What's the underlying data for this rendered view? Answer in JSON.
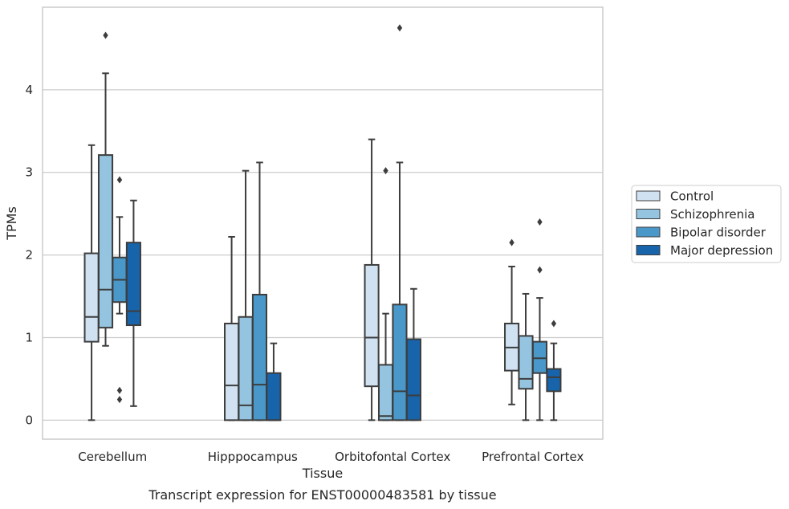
{
  "chart_data": {
    "type": "box",
    "title": "",
    "caption": "Transcript expression for ENST00000483581 by tissue",
    "xlabel": "Tissue",
    "ylabel": "TPMs",
    "ylim": [
      -0.23,
      5.0
    ],
    "yticks": [
      0,
      1,
      2,
      3,
      4
    ],
    "grid": "horizontal",
    "legend_position": "right",
    "categories": [
      "Cerebellum",
      "Hipppocampus",
      "Orbitofontal Cortex",
      "Prefrontal Cortex"
    ],
    "series": [
      {
        "name": "Control",
        "color": "#d0e1f2",
        "boxes": [
          {
            "whisker_low": 0.0,
            "q1": 0.95,
            "median": 1.25,
            "q3": 2.02,
            "whisker_high": 3.33,
            "outliers": []
          },
          {
            "whisker_low": 0.0,
            "q1": 0.0,
            "median": 0.42,
            "q3": 1.17,
            "whisker_high": 2.22,
            "outliers": []
          },
          {
            "whisker_low": 0.0,
            "q1": 0.41,
            "median": 1.0,
            "q3": 1.88,
            "whisker_high": 3.4,
            "outliers": []
          },
          {
            "whisker_low": 0.19,
            "q1": 0.6,
            "median": 0.88,
            "q3": 1.17,
            "whisker_high": 1.86,
            "outliers": [
              2.15
            ]
          }
        ]
      },
      {
        "name": "Schizophrenia",
        "color": "#94c4df",
        "boxes": [
          {
            "whisker_low": 0.9,
            "q1": 1.12,
            "median": 1.58,
            "q3": 3.21,
            "whisker_high": 4.2,
            "outliers": [
              4.66
            ]
          },
          {
            "whisker_low": 0.0,
            "q1": 0.0,
            "median": 0.18,
            "q3": 1.25,
            "whisker_high": 3.02,
            "outliers": []
          },
          {
            "whisker_low": 0.0,
            "q1": 0.0,
            "median": 0.05,
            "q3": 0.67,
            "whisker_high": 1.29,
            "outliers": [
              3.02
            ]
          },
          {
            "whisker_low": 0.0,
            "q1": 0.38,
            "median": 0.5,
            "q3": 1.02,
            "whisker_high": 1.53,
            "outliers": []
          }
        ]
      },
      {
        "name": "Bipolar disorder",
        "color": "#4a98c9",
        "boxes": [
          {
            "whisker_low": 1.29,
            "q1": 1.43,
            "median": 1.7,
            "q3": 1.97,
            "whisker_high": 2.46,
            "outliers": [
              2.91,
              0.36,
              0.25
            ]
          },
          {
            "whisker_low": 0.0,
            "q1": 0.0,
            "median": 0.43,
            "q3": 1.52,
            "whisker_high": 3.12,
            "outliers": []
          },
          {
            "whisker_low": 0.0,
            "q1": 0.0,
            "median": 0.35,
            "q3": 1.4,
            "whisker_high": 3.12,
            "outliers": [
              4.75
            ]
          },
          {
            "whisker_low": 0.0,
            "q1": 0.57,
            "median": 0.75,
            "q3": 0.95,
            "whisker_high": 1.48,
            "outliers": [
              2.4,
              1.82
            ]
          }
        ]
      },
      {
        "name": "Major depression",
        "color": "#1764ab",
        "boxes": [
          {
            "whisker_low": 0.17,
            "q1": 1.15,
            "median": 1.32,
            "q3": 2.15,
            "whisker_high": 2.66,
            "outliers": []
          },
          {
            "whisker_low": 0.0,
            "q1": 0.0,
            "median": 0.0,
            "q3": 0.57,
            "whisker_high": 0.93,
            "outliers": []
          },
          {
            "whisker_low": 0.0,
            "q1": 0.0,
            "median": 0.3,
            "q3": 0.98,
            "whisker_high": 1.59,
            "outliers": []
          },
          {
            "whisker_low": 0.0,
            "q1": 0.35,
            "median": 0.52,
            "q3": 0.62,
            "whisker_high": 0.93,
            "outliers": [
              1.17
            ]
          }
        ]
      }
    ]
  },
  "colors": {
    "box_edge": "#3d3d3d",
    "grid": "#cccccc",
    "frame": "#cccccc"
  }
}
